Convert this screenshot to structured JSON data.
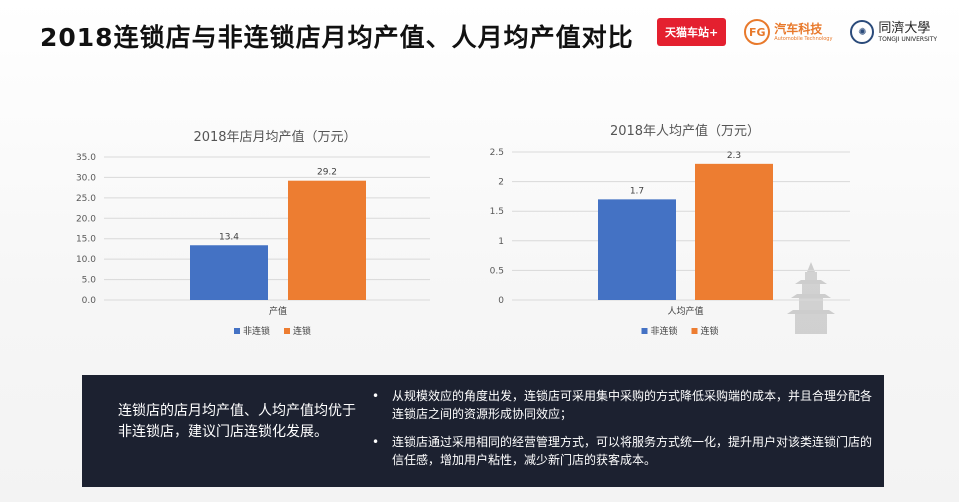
{
  "title": "2018连锁店与非连锁店月均产值、人月均产值对比",
  "logos": {
    "tmall": "天猫车站+",
    "fg_name": "汽车科技",
    "fg_mark": "FG",
    "fg_sub": "Automobile Technology",
    "tongji_name": "同濟大學",
    "tongji_sub": "TONGJI UNIVERSITY"
  },
  "chart_data": [
    {
      "type": "bar",
      "title": "2018年店月均产值（万元）",
      "categories": [
        "产值"
      ],
      "series": [
        {
          "name": "非连锁",
          "values": [
            13.4
          ],
          "color": "#4472c4"
        },
        {
          "name": "连锁",
          "values": [
            29.2
          ],
          "color": "#ed7d31"
        }
      ],
      "ylim": [
        0,
        35
      ],
      "yticks": [
        0,
        5,
        10,
        15,
        20,
        25,
        30,
        35
      ],
      "ytick_labels": [
        "0.0",
        "5.0",
        "10.0",
        "15.0",
        "20.0",
        "25.0",
        "30.0",
        "35.0"
      ],
      "data_labels": [
        "13.4",
        "29.2"
      ],
      "legend": "bottom",
      "grid": true
    },
    {
      "type": "bar",
      "title": "2018年人均产值（万元）",
      "categories": [
        "人均产值"
      ],
      "series": [
        {
          "name": "非连锁",
          "values": [
            1.7
          ],
          "color": "#4472c4"
        },
        {
          "name": "连锁",
          "values": [
            2.3
          ],
          "color": "#ed7d31"
        }
      ],
      "ylim": [
        0,
        2.5
      ],
      "yticks": [
        0,
        0.5,
        1,
        1.5,
        2,
        2.5
      ],
      "ytick_labels": [
        "0",
        "0.5",
        "1",
        "1.5",
        "2",
        "2.5"
      ],
      "data_labels": [
        "1.7",
        "2.3"
      ],
      "legend": "bottom",
      "grid": true
    }
  ],
  "summary": {
    "left": "连锁店的店月均产值、人均产值均优于非连锁店，建议门店连锁化发展。",
    "bullets": [
      "从规模效应的角度出发，连锁店可采用集中采购的方式降低采购端的成本，并且合理分配各连锁店之间的资源形成协同效应；",
      "连锁店通过采用相同的经营管理方式，可以将服务方式统一化，提升用户对该类连锁门店的信任感，增加用户粘性，减少新门店的获客成本。"
    ],
    "bullet_symbol": "•"
  }
}
